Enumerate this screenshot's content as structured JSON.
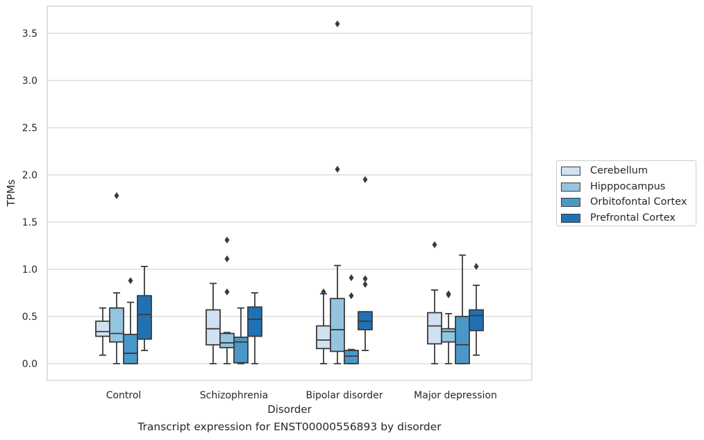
{
  "chart_data": {
    "type": "box",
    "title": "",
    "caption": "Transcript expression for ENST00000556893 by disorder",
    "xlabel": "Disorder",
    "ylabel": "TPMs",
    "ylim": [
      -0.17,
      3.77
    ],
    "yticks": [
      "0.0",
      "0.5",
      "1.0",
      "1.5",
      "2.0",
      "2.5",
      "3.0",
      "3.5"
    ],
    "grid": true,
    "legend_position": "right",
    "categories": [
      "Control",
      "Schizophrenia",
      "Bipolar disorder",
      "Major depression"
    ],
    "series": [
      {
        "name": "Cerebellum",
        "color": "#d0e1f2",
        "boxes": [
          {
            "min": 0.09,
            "q1": 0.29,
            "median": 0.34,
            "q3": 0.45,
            "max": 0.59,
            "outliers": []
          },
          {
            "min": 0.0,
            "q1": 0.2,
            "median": 0.37,
            "q3": 0.57,
            "max": 0.85,
            "outliers": []
          },
          {
            "min": 0.0,
            "q1": 0.16,
            "median": 0.25,
            "q3": 0.4,
            "max": 0.74,
            "outliers": [
              0.76
            ]
          },
          {
            "min": 0.0,
            "q1": 0.21,
            "median": 0.4,
            "q3": 0.54,
            "max": 0.78,
            "outliers": [
              1.26
            ]
          }
        ]
      },
      {
        "name": "Hipppocampus",
        "color": "#94c4df",
        "boxes": [
          {
            "min": 0.0,
            "q1": 0.23,
            "median": 0.32,
            "q3": 0.59,
            "max": 0.75,
            "outliers": [
              1.78
            ]
          },
          {
            "min": 0.0,
            "q1": 0.17,
            "median": 0.22,
            "q3": 0.32,
            "max": 0.33,
            "outliers": [
              0.76,
              1.11,
              1.31
            ]
          },
          {
            "min": 0.0,
            "q1": 0.13,
            "median": 0.36,
            "q3": 0.69,
            "max": 1.04,
            "outliers": [
              2.06,
              3.6
            ]
          },
          {
            "min": 0.0,
            "q1": 0.23,
            "median": 0.34,
            "q3": 0.37,
            "max": 0.53,
            "outliers": [
              0.73,
              0.74
            ]
          }
        ]
      },
      {
        "name": "Orbitofontal Cortex",
        "color": "#4a98c9",
        "boxes": [
          {
            "min": 0.0,
            "q1": 0.0,
            "median": 0.11,
            "q3": 0.31,
            "max": 0.65,
            "outliers": [
              0.88
            ]
          },
          {
            "min": 0.0,
            "q1": 0.01,
            "median": 0.23,
            "q3": 0.28,
            "max": 0.59,
            "outliers": []
          },
          {
            "min": 0.0,
            "q1": 0.0,
            "median": 0.08,
            "q3": 0.14,
            "max": 0.15,
            "outliers": [
              0.72,
              0.91
            ]
          },
          {
            "min": 0.0,
            "q1": 0.0,
            "median": 0.2,
            "q3": 0.5,
            "max": 1.15,
            "outliers": []
          }
        ]
      },
      {
        "name": "Prefrontal Cortex",
        "color": "#2171b5",
        "boxes": [
          {
            "min": 0.14,
            "q1": 0.26,
            "median": 0.52,
            "q3": 0.72,
            "max": 1.03,
            "outliers": []
          },
          {
            "min": 0.0,
            "q1": 0.29,
            "median": 0.47,
            "q3": 0.6,
            "max": 0.75,
            "outliers": []
          },
          {
            "min": 0.14,
            "q1": 0.36,
            "median": 0.45,
            "q3": 0.55,
            "max": 0.55,
            "outliers": [
              0.84,
              0.9,
              1.95
            ]
          },
          {
            "min": 0.09,
            "q1": 0.35,
            "median": 0.51,
            "q3": 0.57,
            "max": 0.83,
            "outliers": [
              1.03
            ]
          }
        ]
      }
    ]
  }
}
